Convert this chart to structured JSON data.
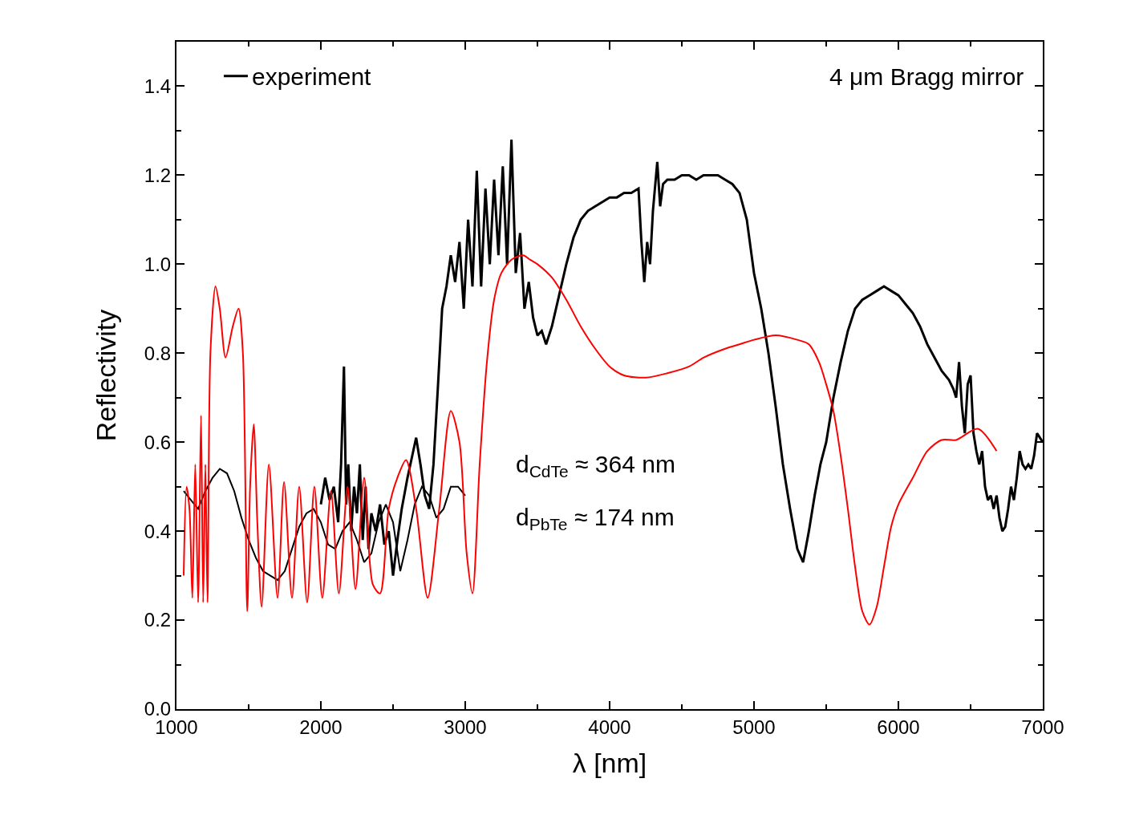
{
  "chart_data": {
    "type": "line",
    "xlabel": "λ [nm]",
    "ylabel": "Reflectivity",
    "xlim": [
      1000,
      7000
    ],
    "xticks": [
      1000,
      2000,
      3000,
      4000,
      5000,
      6000,
      7000
    ],
    "ylim": [
      0,
      1.5
    ],
    "yticks": [
      {
        "value": 0,
        "label": "0.0"
      },
      0.2,
      0.4,
      0.6,
      0.8,
      {
        "value": 1,
        "label": "1.0"
      },
      1.2,
      1.4
    ],
    "legend": "top left",
    "line_style": "solid",
    "marker": "none",
    "annotations": [
      "4 μm Bragg mirror",
      "d$_{CdTe}$ ≈ 364 nm",
      "d$_{PbTe}$ ≈ 174 nm"
    ],
    "series": [
      {
        "name": "experiment",
        "color": "#000000",
        "x": [
          2000,
          2030,
          2060,
          2090,
          2120,
          2140,
          2160,
          2175,
          2190,
          2210,
          2230,
          2250,
          2270,
          2290,
          2310,
          2330,
          2350,
          2380,
          2410,
          2440,
          2470,
          2500,
          2530,
          2560,
          2600,
          2640,
          2660,
          2690,
          2720,
          2750,
          2780,
          2810,
          2840,
          2870,
          2900,
          2930,
          2960,
          2990,
          3020,
          3050,
          3080,
          3110,
          3140,
          3170,
          3200,
          3230,
          3260,
          3290,
          3320,
          3350,
          3380,
          3410,
          3440,
          3470,
          3500,
          3530,
          3560,
          3600,
          3650,
          3700,
          3750,
          3800,
          3850,
          3900,
          3950,
          4000,
          4050,
          4100,
          4150,
          4200,
          4220,
          4240,
          4260,
          4280,
          4300,
          4330,
          4350,
          4370,
          4400,
          4450,
          4500,
          4550,
          4600,
          4650,
          4700,
          4750,
          4800,
          4850,
          4900,
          4950,
          5000,
          5050,
          5100,
          5150,
          5200,
          5250,
          5300,
          5340,
          5380,
          5420,
          5460,
          5500,
          5550,
          5600,
          5650,
          5700,
          5750,
          5800,
          5850,
          5900,
          5950,
          6000,
          6050,
          6100,
          6150,
          6200,
          6250,
          6300,
          6350,
          6380,
          6400,
          6420,
          6440,
          6460,
          6480,
          6500,
          6520,
          6540,
          6560,
          6580,
          6600,
          6620,
          6640,
          6660,
          6680,
          6700,
          6720,
          6740,
          6760,
          6780,
          6800,
          6820,
          6840,
          6860,
          6880,
          6900,
          6920,
          6940,
          6960,
          6980,
          7000
        ],
        "values": [
          0.46,
          0.52,
          0.47,
          0.5,
          0.42,
          0.55,
          0.77,
          0.46,
          0.55,
          0.4,
          0.5,
          0.44,
          0.55,
          0.38,
          0.5,
          0.36,
          0.44,
          0.4,
          0.46,
          0.37,
          0.4,
          0.3,
          0.38,
          0.45,
          0.52,
          0.58,
          0.61,
          0.55,
          0.48,
          0.45,
          0.55,
          0.72,
          0.9,
          0.95,
          1.02,
          0.96,
          1.05,
          0.9,
          1.1,
          0.95,
          1.21,
          0.95,
          1.17,
          1.0,
          1.19,
          1.02,
          1.22,
          1.0,
          1.28,
          0.98,
          1.07,
          0.9,
          0.96,
          0.88,
          0.84,
          0.85,
          0.82,
          0.86,
          0.93,
          1.0,
          1.06,
          1.1,
          1.12,
          1.13,
          1.14,
          1.15,
          1.15,
          1.16,
          1.16,
          1.17,
          1.05,
          0.96,
          1.05,
          1.0,
          1.12,
          1.23,
          1.13,
          1.18,
          1.19,
          1.19,
          1.2,
          1.2,
          1.19,
          1.2,
          1.2,
          1.2,
          1.19,
          1.18,
          1.16,
          1.1,
          0.98,
          0.9,
          0.8,
          0.68,
          0.55,
          0.45,
          0.36,
          0.33,
          0.4,
          0.48,
          0.55,
          0.6,
          0.7,
          0.78,
          0.85,
          0.9,
          0.92,
          0.93,
          0.94,
          0.95,
          0.94,
          0.93,
          0.91,
          0.89,
          0.86,
          0.82,
          0.79,
          0.76,
          0.74,
          0.72,
          0.7,
          0.78,
          0.68,
          0.62,
          0.73,
          0.75,
          0.62,
          0.58,
          0.55,
          0.58,
          0.5,
          0.47,
          0.48,
          0.45,
          0.48,
          0.43,
          0.4,
          0.41,
          0.45,
          0.5,
          0.47,
          0.52,
          0.58,
          0.55,
          0.54,
          0.55,
          0.54,
          0.57,
          0.62,
          0.61,
          0.6
        ]
      },
      {
        "color": "#000000",
        "x": [
          1050,
          1100,
          1150,
          1200,
          1250,
          1300,
          1350,
          1400,
          1450,
          1500,
          1550,
          1600,
          1650,
          1700,
          1750,
          1800,
          1850,
          1900,
          1950,
          2000,
          2050,
          2100,
          2150,
          2200,
          2250,
          2300,
          2350,
          2400,
          2450,
          2500,
          2550,
          2600,
          2650,
          2700,
          2750,
          2800,
          2850,
          2900,
          2950,
          3000
        ],
        "values": [
          0.49,
          0.47,
          0.45,
          0.49,
          0.52,
          0.54,
          0.53,
          0.49,
          0.43,
          0.38,
          0.34,
          0.31,
          0.3,
          0.29,
          0.31,
          0.36,
          0.41,
          0.44,
          0.45,
          0.42,
          0.37,
          0.36,
          0.4,
          0.42,
          0.38,
          0.33,
          0.35,
          0.42,
          0.46,
          0.42,
          0.31,
          0.38,
          0.46,
          0.5,
          0.48,
          0.43,
          0.45,
          0.5,
          0.5,
          0.48
        ]
      },
      {
        "color": "#ff0000",
        "x": [
          1050,
          1070,
          1090,
          1110,
          1130,
          1150,
          1170,
          1185,
          1200,
          1215,
          1235,
          1270,
          1300,
          1340,
          1390,
          1430,
          1460,
          1490,
          1510,
          1535,
          1560,
          1590,
          1640,
          1700,
          1745,
          1800,
          1850,
          1905,
          1955,
          2010,
          2070,
          2125,
          2185,
          2240,
          2300,
          2360,
          2410,
          2470,
          2530,
          2590,
          2660,
          2740,
          2820,
          2900,
          2960,
          3010,
          3050,
          3100,
          3150,
          3200,
          3250,
          3320,
          3400,
          3450,
          3500,
          3600,
          3700,
          3800,
          3900,
          4000,
          4100,
          4250,
          4400,
          4550,
          4650,
          4800,
          4900,
          5000,
          5150,
          5300,
          5380,
          5450,
          5500,
          5550,
          5600,
          5650,
          5700,
          5750,
          5800,
          5850,
          5900,
          5950,
          6000,
          6100,
          6200,
          6300,
          6400,
          6550,
          6680
        ],
        "values": [
          0.3,
          0.5,
          0.45,
          0.25,
          0.55,
          0.24,
          0.66,
          0.24,
          0.55,
          0.24,
          0.8,
          0.95,
          0.9,
          0.79,
          0.86,
          0.9,
          0.8,
          0.22,
          0.5,
          0.64,
          0.42,
          0.23,
          0.55,
          0.25,
          0.51,
          0.25,
          0.5,
          0.24,
          0.5,
          0.25,
          0.49,
          0.26,
          0.5,
          0.27,
          0.52,
          0.28,
          0.26,
          0.45,
          0.52,
          0.56,
          0.45,
          0.25,
          0.45,
          0.67,
          0.6,
          0.35,
          0.26,
          0.55,
          0.78,
          0.92,
          0.98,
          1.01,
          1.02,
          1.01,
          1.0,
          0.97,
          0.92,
          0.86,
          0.81,
          0.77,
          0.75,
          0.745,
          0.755,
          0.77,
          0.79,
          0.81,
          0.82,
          0.83,
          0.84,
          0.83,
          0.82,
          0.78,
          0.73,
          0.67,
          0.57,
          0.45,
          0.32,
          0.22,
          0.19,
          0.23,
          0.32,
          0.41,
          0.46,
          0.52,
          0.58,
          0.605,
          0.605,
          0.63,
          0.58
        ]
      }
    ]
  }
}
